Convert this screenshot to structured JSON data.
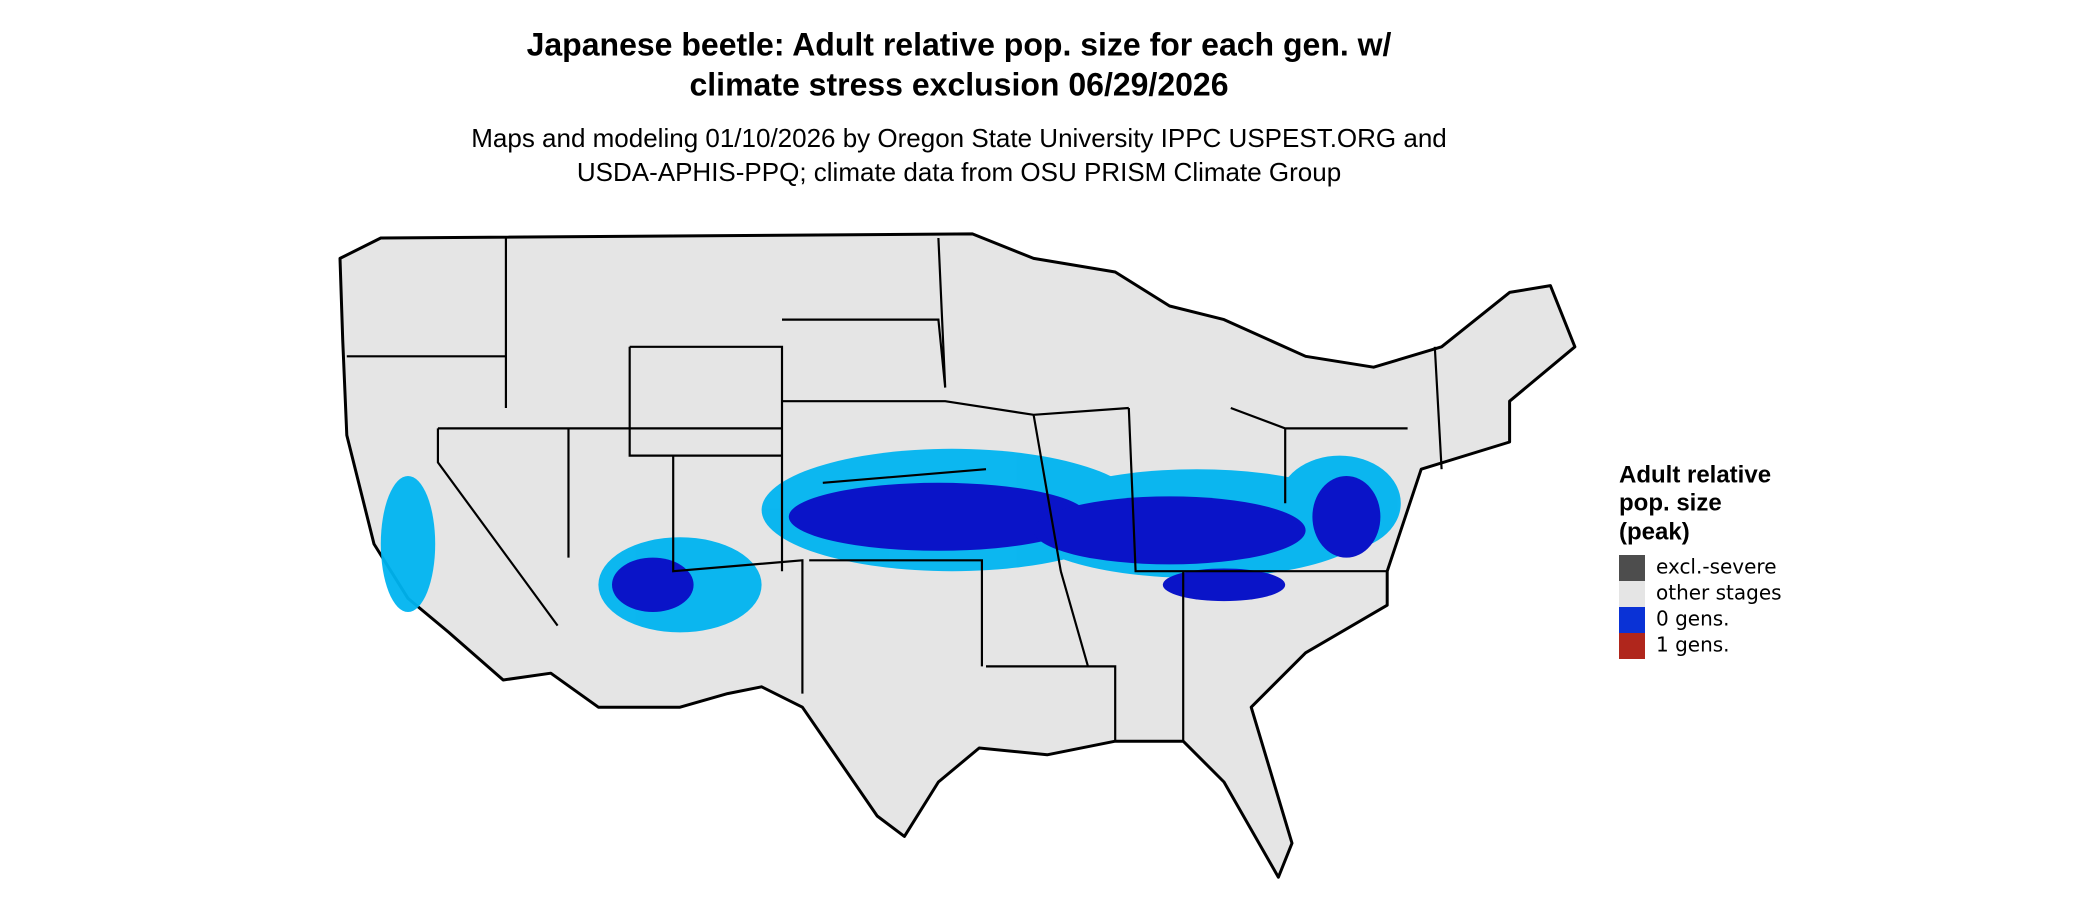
{
  "header": {
    "title": [
      "Japanese beetle: Adult relative pop. size for each gen. w/",
      "climate stress exclusion 06/29/2026"
    ],
    "subtitle": [
      "Maps and modeling 01/10/2026 by Oregon State University IPPC USPEST.ORG and",
      "USDA-APHIS-PPQ; climate data from OSU PRISM Climate Group"
    ]
  },
  "legend": {
    "title": [
      "Adult relative",
      "pop. size",
      "(peak)"
    ],
    "items": [
      {
        "label": "excl.-severe",
        "color": "#4d4d4d"
      },
      {
        "label": "other stages",
        "color": "#e5e5e5"
      },
      {
        "label": "0 gens.",
        "color": "#0a32d6"
      },
      {
        "label": "1 gens.",
        "color": "#b0261c"
      }
    ]
  }
}
